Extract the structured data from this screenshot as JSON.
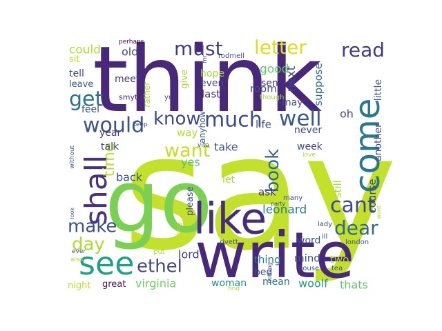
{
  "words": [
    {
      "text": "say",
      "color": "#c3e02b"
    },
    {
      "text": "think",
      "color": "#482878"
    },
    {
      "text": "write",
      "color": "#482878"
    },
    {
      "text": "go",
      "color": "#7ad151"
    },
    {
      "text": "like",
      "color": "#472c7a"
    },
    {
      "text": "come",
      "color": "#2a788e"
    },
    {
      "text": "see",
      "color": "#1fa187"
    },
    {
      "text": "shall",
      "color": "#46327e"
    },
    {
      "text": "would",
      "color": "#3b528b"
    },
    {
      "text": "much",
      "color": "#3d4d8a"
    },
    {
      "text": "well",
      "color": "#38598c"
    },
    {
      "text": "know",
      "color": "#3e4989"
    },
    {
      "text": "must",
      "color": "#443983"
    },
    {
      "text": "letter",
      "color": "#d8e219"
    },
    {
      "text": "read",
      "color": "#443a83"
    },
    {
      "text": "get",
      "color": "#2c728e"
    },
    {
      "text": "want",
      "color": "#c2df23"
    },
    {
      "text": "time",
      "color": "#b5de2b"
    },
    {
      "text": "cant",
      "color": "#3e4989"
    },
    {
      "text": "dear",
      "color": "#31688e"
    },
    {
      "text": "make",
      "color": "#3b528b"
    },
    {
      "text": "ethel",
      "color": "#3f4889"
    },
    {
      "text": "day",
      "color": "#addc30"
    },
    {
      "text": "book",
      "color": "#31688e"
    },
    {
      "text": "could",
      "color": "#addc30"
    },
    {
      "text": "old",
      "color": "#414487"
    },
    {
      "text": "good",
      "color": "#5ec962"
    },
    {
      "text": "virginia",
      "color": "#6ece58"
    },
    {
      "text": "leonard",
      "color": "#26828e"
    },
    {
      "text": "yes",
      "color": "#50c46a"
    },
    {
      "text": "take",
      "color": "#3b528b"
    },
    {
      "text": "back",
      "color": "#3b528b"
    },
    {
      "text": "lord",
      "color": "#443983"
    },
    {
      "text": "thing",
      "color": "#2a788e"
    },
    {
      "text": "mind",
      "color": "#3b528b"
    },
    {
      "text": "two",
      "color": "#b5de2b"
    },
    {
      "text": "woolf",
      "color": "#1f9a8a"
    },
    {
      "text": "woman",
      "color": "#20928c"
    },
    {
      "text": "great",
      "color": "#471365"
    },
    {
      "text": "night",
      "color": "#b8de29"
    },
    {
      "text": "thats",
      "color": "#5ec962"
    },
    {
      "text": "mean",
      "color": "#2c728e"
    },
    {
      "text": "bed",
      "color": "#3b528b"
    },
    {
      "text": "meet",
      "color": "#46337e"
    },
    {
      "text": "tell",
      "color": "#3e4989"
    },
    {
      "text": "sit",
      "color": "#b8de29"
    },
    {
      "text": "leave",
      "color": "#3b528b"
    },
    {
      "text": "feel",
      "color": "#3e4989"
    },
    {
      "text": "year",
      "color": "#443983"
    },
    {
      "text": "talk",
      "color": "#3e4989"
    },
    {
      "text": "hope",
      "color": "#a2da37"
    },
    {
      "text": "even",
      "color": "#3e4989"
    },
    {
      "text": "last",
      "color": "#472d7b"
    },
    {
      "text": "room",
      "color": "#3b528b"
    },
    {
      "text": "send",
      "color": "#472c7a"
    },
    {
      "text": "life",
      "color": "#3b528b"
    },
    {
      "text": "week",
      "color": "#3e4989"
    },
    {
      "text": "never",
      "color": "#3f4889"
    },
    {
      "text": "may",
      "color": "#3b528b"
    },
    {
      "text": "next",
      "color": "#3e4989"
    },
    {
      "text": "suppose",
      "color": "#2f6c8e"
    },
    {
      "text": "little",
      "color": "#3b528b"
    },
    {
      "text": "oh",
      "color": "#3e4989"
    },
    {
      "text": "another",
      "color": "#3e4989"
    },
    {
      "text": "still",
      "color": "#a5db36"
    },
    {
      "text": "course",
      "color": "#3e4989"
    },
    {
      "text": "word",
      "color": "#3b528b"
    },
    {
      "text": "ask",
      "color": "#472c7a"
    },
    {
      "text": "let",
      "color": "#a2da37"
    },
    {
      "text": "please",
      "color": "#3b528b"
    },
    {
      "text": "give",
      "color": "#a2da37"
    },
    {
      "text": "way",
      "color": "#b5de2b"
    },
    {
      "text": "rather",
      "color": "#addc30"
    },
    {
      "text": "anyhow",
      "color": "#3b528b"
    },
    {
      "text": "perhaps",
      "color": "#440154"
    },
    {
      "text": "rodmell",
      "color": "#3e4989"
    },
    {
      "text": "mr",
      "color": "#3b528b"
    },
    {
      "text": "smyth",
      "color": "#472c7a"
    },
    {
      "text": "yr",
      "color": "#3e4989"
    },
    {
      "text": "keep",
      "color": "#3e4989"
    },
    {
      "text": "vita",
      "color": "#3b528b"
    },
    {
      "text": "though",
      "color": "#a2da37"
    },
    {
      "text": "love",
      "color": "#addc30"
    },
    {
      "text": "without",
      "color": "#3b528b"
    },
    {
      "text": "many",
      "color": "#3e4989"
    },
    {
      "text": "party",
      "color": "#3e4989"
    },
    {
      "text": "wont",
      "color": "#a2da37"
    },
    {
      "text": "lady",
      "color": "#3e4989"
    },
    {
      "text": "london",
      "color": "#3b528b"
    },
    {
      "text": "ill",
      "color": "#3e4989"
    },
    {
      "text": "long",
      "color": "#addc30"
    },
    {
      "text": "rivett",
      "color": "#3b528b"
    },
    {
      "text": "look",
      "color": "#3b528b"
    },
    {
      "text": "ever",
      "color": "#3e4989"
    },
    {
      "text": "also",
      "color": "#addc30"
    },
    {
      "text": "put",
      "color": "#addc30"
    },
    {
      "text": "house",
      "color": "#3b528b"
    },
    {
      "text": "tea",
      "color": "#3b528b"
    },
    {
      "text": "find",
      "color": "#addc30"
    },
    {
      "text": "nothing",
      "color": "#3e4989"
    }
  ]
}
